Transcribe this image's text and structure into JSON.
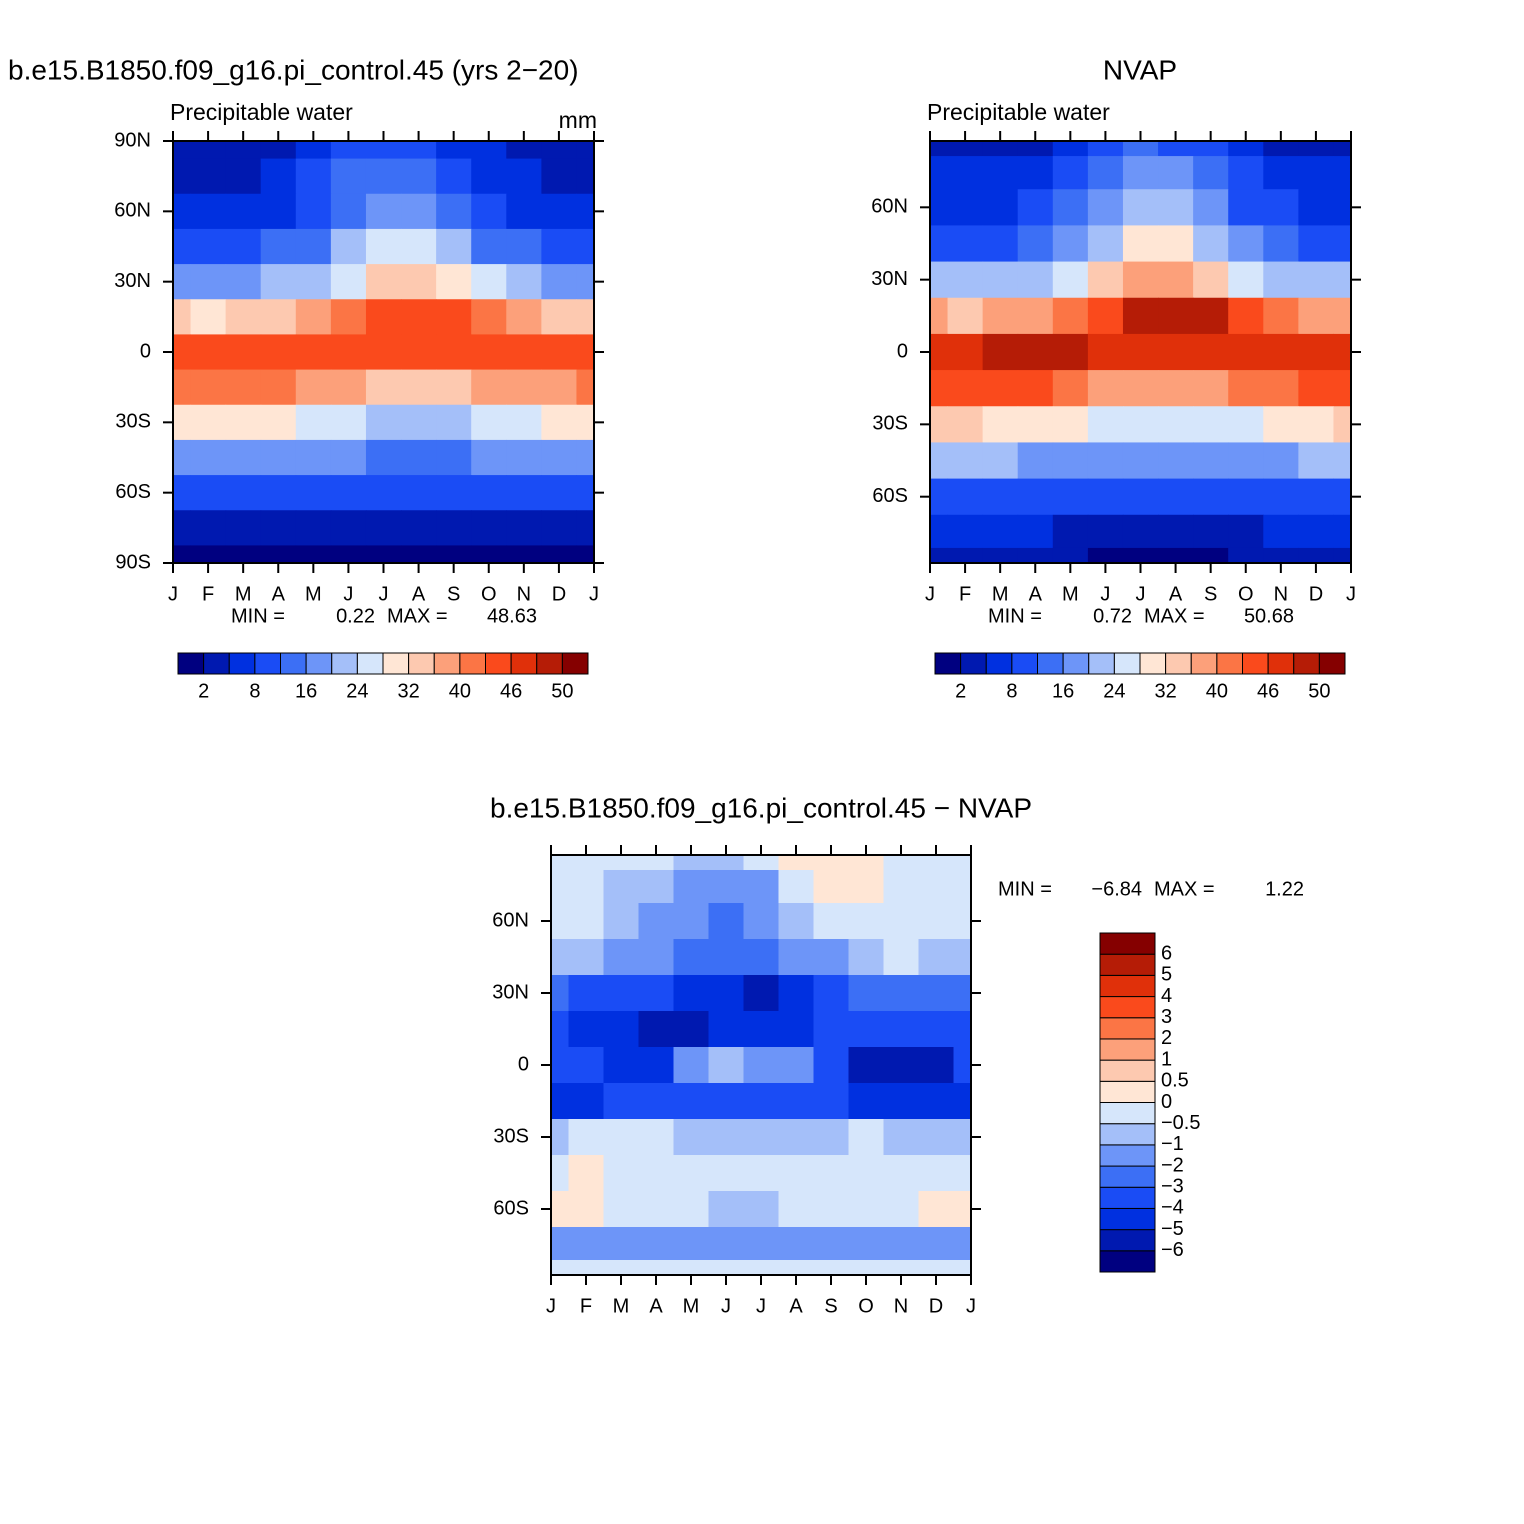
{
  "chart_data": [
    {
      "type": "contour",
      "title": "b.e15.B1850.f09_g16.pi_control.45 (yrs 2−20)",
      "left_string": "Precipitable water",
      "right_string": "mm",
      "categories": [
        "J",
        "F",
        "M",
        "A",
        "M",
        "J",
        "J",
        "A",
        "S",
        "O",
        "N",
        "D",
        "J"
      ],
      "y": [
        90,
        75,
        60,
        45,
        30,
        15,
        0,
        -15,
        -30,
        -45,
        -60,
        -75,
        -90
      ],
      "ylim": [
        -90,
        90
      ],
      "yticks": [
        {
          "value": 90,
          "label": "90N"
        },
        {
          "value": 60,
          "label": "60N"
        },
        {
          "value": 30,
          "label": "30N"
        },
        0,
        {
          "value": -30,
          "label": "30S"
        },
        {
          "value": -60,
          "label": "60S"
        },
        {
          "value": -90,
          "label": "90S"
        }
      ],
      "z": [
        [
          3,
          3,
          3,
          4,
          6,
          9,
          11,
          10,
          7,
          5,
          3,
          3,
          3
        ],
        [
          4,
          4,
          4,
          5,
          8,
          12,
          15,
          14,
          10,
          7,
          5,
          4,
          4
        ],
        [
          6,
          6,
          6,
          7,
          10,
          15,
          19,
          18,
          14,
          10,
          7,
          6,
          6
        ],
        [
          10,
          10,
          10,
          12,
          15,
          20,
          25,
          24,
          20,
          15,
          12,
          10,
          10
        ],
        [
          18,
          18,
          18,
          20,
          23,
          27,
          32,
          32,
          29,
          24,
          20,
          19,
          18
        ],
        [
          32,
          31,
          32,
          34,
          36,
          40,
          44,
          45,
          44,
          40,
          36,
          33,
          32
        ],
        [
          43,
          43,
          44,
          44,
          44,
          44,
          43,
          43,
          43,
          43,
          43,
          43,
          43
        ],
        [
          40,
          41,
          41,
          40,
          38,
          36,
          34,
          34,
          35,
          36,
          38,
          39,
          40
        ],
        [
          30,
          30,
          30,
          28,
          26,
          24,
          22,
          22,
          23,
          25,
          27,
          29,
          30
        ],
        [
          19,
          19,
          19,
          18,
          17,
          16,
          14,
          14,
          15,
          16,
          17,
          18,
          19
        ],
        [
          10,
          10,
          10,
          9,
          9,
          8,
          8,
          8,
          8,
          9,
          9,
          10,
          10
        ],
        [
          4,
          4,
          4,
          4,
          3,
          3,
          3,
          3,
          3,
          3,
          4,
          4,
          4
        ],
        [
          1,
          1,
          1,
          1,
          1,
          0.5,
          0.5,
          0.5,
          0.5,
          1,
          1,
          1,
          1
        ]
      ],
      "min_label": "MIN =",
      "min": 0.22,
      "max_label": "MAX =",
      "max": 48.63,
      "levels": [
        2,
        5,
        8,
        12,
        16,
        20,
        24,
        28,
        32,
        36,
        40,
        43,
        46,
        48,
        50
      ],
      "level_ticks": [
        2,
        8,
        16,
        24,
        32,
        40,
        46,
        50
      ],
      "colors": [
        "#000080",
        "#0019b0",
        "#0030e0",
        "#1a4cf5",
        "#3c6ff5",
        "#6d95f8",
        "#a4bff9",
        "#d6e6fb",
        "#ffe6d5",
        "#fdc9b0",
        "#fca07a",
        "#fb7545",
        "#fa4a1c",
        "#e0300a",
        "#b51c06",
        "#850000"
      ]
    },
    {
      "type": "contour",
      "title": "NVAP",
      "left_string": "Precipitable water",
      "categories": [
        "J",
        "F",
        "M",
        "A",
        "M",
        "J",
        "J",
        "A",
        "S",
        "O",
        "N",
        "D",
        "J"
      ],
      "y": [
        87.5,
        75,
        60,
        45,
        30,
        15,
        0,
        -15,
        -30,
        -45,
        -60,
        -75,
        -87.5
      ],
      "ylim": [
        -87.5,
        87.5
      ],
      "yticks": [
        {
          "value": 60,
          "label": "60N"
        },
        {
          "value": 30,
          "label": "30N"
        },
        0,
        {
          "value": -30,
          "label": "30S"
        },
        {
          "value": -60,
          "label": "60S"
        }
      ],
      "z": [
        [
          3,
          3,
          3,
          4,
          6,
          9,
          12,
          11,
          8,
          5,
          3,
          3,
          3
        ],
        [
          5,
          5,
          5,
          6,
          9,
          14,
          18,
          17,
          12,
          8,
          6,
          5,
          5
        ],
        [
          7,
          7,
          7,
          9,
          12,
          17,
          22,
          21,
          16,
          11,
          8,
          7,
          7
        ],
        [
          11,
          11,
          11,
          13,
          17,
          23,
          29,
          28,
          23,
          17,
          13,
          11,
          11
        ],
        [
          20,
          20,
          21,
          23,
          27,
          32,
          37,
          37,
          33,
          27,
          23,
          21,
          20
        ],
        [
          36,
          35,
          36,
          38,
          41,
          45,
          48,
          49,
          48,
          44,
          40,
          38,
          36
        ],
        [
          47,
          47,
          48,
          48,
          48,
          47,
          46,
          46,
          46,
          46,
          46,
          47,
          47
        ],
        [
          44,
          44,
          44,
          43,
          41,
          39,
          37,
          37,
          38,
          40,
          41,
          43,
          44
        ],
        [
          32,
          32,
          31,
          30,
          28,
          26,
          24,
          24,
          25,
          27,
          29,
          31,
          32
        ],
        [
          20,
          20,
          20,
          19,
          18,
          17,
          16,
          16,
          17,
          18,
          19,
          20,
          20
        ],
        [
          11,
          11,
          11,
          10,
          10,
          9,
          9,
          9,
          9,
          10,
          10,
          11,
          11
        ],
        [
          5,
          5,
          5,
          5,
          4,
          4,
          4,
          4,
          4,
          4,
          5,
          5,
          5
        ],
        [
          2,
          2,
          2,
          2,
          2,
          1.5,
          1.5,
          1.5,
          1.5,
          2,
          2,
          2,
          2
        ]
      ],
      "min_label": "MIN =",
      "min": 0.72,
      "max_label": "MAX =",
      "max": 50.68,
      "levels": [
        2,
        5,
        8,
        12,
        16,
        20,
        24,
        28,
        32,
        36,
        40,
        43,
        46,
        48,
        50
      ],
      "level_ticks": [
        2,
        8,
        16,
        24,
        32,
        40,
        46,
        50
      ],
      "colors": [
        "#000080",
        "#0019b0",
        "#0030e0",
        "#1a4cf5",
        "#3c6ff5",
        "#6d95f8",
        "#a4bff9",
        "#d6e6fb",
        "#ffe6d5",
        "#fdc9b0",
        "#fca07a",
        "#fb7545",
        "#fa4a1c",
        "#e0300a",
        "#b51c06",
        "#850000"
      ]
    },
    {
      "type": "contour",
      "title": "b.e15.B1850.f09_g16.pi_control.45 − NVAP",
      "categories": [
        "J",
        "F",
        "M",
        "A",
        "M",
        "J",
        "J",
        "A",
        "S",
        "O",
        "N",
        "D",
        "J"
      ],
      "y": [
        87.5,
        75,
        60,
        45,
        30,
        15,
        0,
        -15,
        -30,
        -45,
        -60,
        -75,
        -87.5
      ],
      "ylim": [
        -87.5,
        87.5
      ],
      "yticks": [
        {
          "value": 60,
          "label": "60N"
        },
        {
          "value": 30,
          "label": "30N"
        },
        0,
        {
          "value": -30,
          "label": "30S"
        },
        {
          "value": -60,
          "label": "60S"
        }
      ],
      "z": [
        [
          -0.3,
          -0.3,
          -0.3,
          -0.4,
          -0.8,
          -1,
          -0.5,
          0.2,
          0.3,
          0.3,
          -0.2,
          -0.3,
          -0.3
        ],
        [
          -0.3,
          -0.4,
          -0.6,
          -1,
          -1.5,
          -1.8,
          -1.2,
          -0.5,
          0.2,
          0.3,
          -0.2,
          -0.3,
          -0.3
        ],
        [
          -0.2,
          -0.5,
          -1,
          -1.5,
          -2,
          -2.2,
          -1.8,
          -1,
          -0.4,
          -0.2,
          -0.3,
          -0.3,
          -0.2
        ],
        [
          -0.8,
          -1,
          -1.5,
          -2,
          -2.5,
          -3,
          -2.5,
          -2,
          -1.5,
          -0.8,
          -0.5,
          -0.6,
          -0.8
        ],
        [
          -3,
          -3.2,
          -3.5,
          -4,
          -4.5,
          -5,
          -5.5,
          -5,
          -4,
          -3,
          -2.5,
          -3,
          -3
        ],
        [
          -4,
          -4.5,
          -5,
          -6,
          -5.5,
          -5,
          -5,
          -4.8,
          -4,
          -3.5,
          -3.5,
          -3.5,
          -4
        ],
        [
          -3.5,
          -4,
          -4.5,
          -5,
          -2,
          -1,
          -1.5,
          -2,
          -4,
          -5.5,
          -6,
          -5.5,
          -3.5
        ],
        [
          -4.2,
          -4.2,
          -4,
          -3.8,
          -3.5,
          -3.5,
          -3.5,
          -3.8,
          -4,
          -4.5,
          -4.5,
          -4.3,
          -4.2
        ],
        [
          -1,
          -0.5,
          -0.3,
          -0.5,
          -0.8,
          -1,
          -1,
          -1,
          -0.8,
          -0.5,
          -0.6,
          -1,
          -1
        ],
        [
          -0.2,
          0.2,
          -0.1,
          -0.3,
          -0.3,
          -0.3,
          -0.2,
          -0.3,
          -0.3,
          -0.3,
          -0.3,
          -0.2,
          -0.2
        ],
        [
          0.3,
          0.3,
          -0.2,
          -0.5,
          -0.5,
          -0.6,
          -0.6,
          -0.5,
          -0.5,
          -0.4,
          -0.3,
          0.2,
          0.3
        ],
        [
          -1.2,
          -1.5,
          -1.5,
          -1.5,
          -1.5,
          -1.5,
          -1.5,
          -1.5,
          -1.5,
          -1.5,
          -1.5,
          -1.2,
          -1.2
        ],
        [
          -0.4,
          -0.4,
          -0.4,
          -0.4,
          -0.4,
          -0.4,
          -0.4,
          -0.4,
          -0.4,
          -0.4,
          -0.4,
          -0.4,
          -0.4
        ]
      ],
      "min_label": "MIN =",
      "min": {
        "value": -6.84,
        "label": "−6.84"
      },
      "max_label": "MAX =",
      "max": 1.22,
      "levels": [
        -6,
        -5,
        -4,
        -3,
        -2,
        -1,
        -0.5,
        0,
        0.5,
        1,
        2,
        3,
        4,
        5,
        6
      ],
      "level_ticks": [
        {
          "value": -6,
          "label": "−6"
        },
        {
          "value": -5,
          "label": "−5"
        },
        {
          "value": -4,
          "label": "−4"
        },
        {
          "value": -3,
          "label": "−3"
        },
        {
          "value": -2,
          "label": "−2"
        },
        {
          "value": -1,
          "label": "−1"
        },
        {
          "value": -0.5,
          "label": "−0.5"
        },
        0,
        0.5,
        1,
        2,
        3,
        4,
        5,
        6
      ],
      "colors": [
        "#000080",
        "#0019b0",
        "#0030e0",
        "#1a4cf5",
        "#3c6ff5",
        "#6d95f8",
        "#a4bff9",
        "#d6e6fb",
        "#ffe6d5",
        "#fdc9b0",
        "#fca07a",
        "#fb7545",
        "#fa4a1c",
        "#e0300a",
        "#b51c06",
        "#850000"
      ]
    }
  ]
}
